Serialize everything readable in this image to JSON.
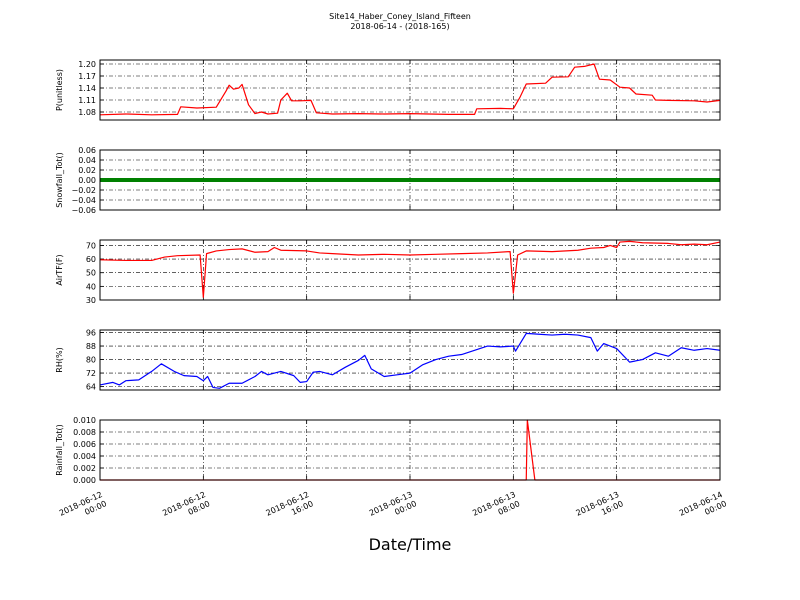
{
  "figure": {
    "title_line1": "Site14_Haber_Coney_Island_Fifteen",
    "title_line2": "2018-06-14 - (2018-165)",
    "xlabel": "Date/Time"
  },
  "chart_data": {
    "type": "line",
    "x_axis": {
      "start": "2018-06-12 00:00",
      "end": "2018-06-14 00:00",
      "ticks": [
        {
          "time": "2018-06-12 00:00",
          "line1": "2018-06-12",
          "line2": "00:00"
        },
        {
          "time": "2018-06-12 08:00",
          "line1": "2018-06-12",
          "line2": "08:00"
        },
        {
          "time": "2018-06-12 16:00",
          "line1": "2018-06-12",
          "line2": "16:00"
        },
        {
          "time": "2018-06-13 00:00",
          "line1": "2018-06-13",
          "line2": "00:00"
        },
        {
          "time": "2018-06-13 08:00",
          "line1": "2018-06-13",
          "line2": "08:00"
        },
        {
          "time": "2018-06-13 16:00",
          "line1": "2018-06-13",
          "line2": "16:00"
        },
        {
          "time": "2018-06-14 00:00",
          "line1": "2018-06-14",
          "line2": "00:00"
        }
      ]
    },
    "grid": true,
    "grid_style": "dash-dot",
    "panels": [
      {
        "ylabel": "P(unitless)",
        "color": "#ff0000",
        "ylim": [
          1.06,
          1.21
        ],
        "yticks": [
          "1.20",
          "1.17",
          "1.14",
          "1.11",
          "1.08"
        ],
        "ytick_values": [
          1.2,
          1.17,
          1.14,
          1.11,
          1.08
        ],
        "points": [
          [
            "2018-06-12 00:00",
            1.073
          ],
          [
            "2018-06-12 02:00",
            1.075
          ],
          [
            "2018-06-12 04:00",
            1.073
          ],
          [
            "2018-06-12 06:00",
            1.074
          ],
          [
            "2018-06-12 06:15",
            1.093
          ],
          [
            "2018-06-12 07:30",
            1.09
          ],
          [
            "2018-06-12 09:00",
            1.092
          ],
          [
            "2018-06-12 09:45",
            1.132
          ],
          [
            "2018-06-12 10:00",
            1.147
          ],
          [
            "2018-06-12 10:20",
            1.137
          ],
          [
            "2018-06-12 10:45",
            1.14
          ],
          [
            "2018-06-12 11:00",
            1.149
          ],
          [
            "2018-06-12 11:30",
            1.098
          ],
          [
            "2018-06-12 12:00",
            1.076
          ],
          [
            "2018-06-12 12:30",
            1.08
          ],
          [
            "2018-06-12 13:00",
            1.075
          ],
          [
            "2018-06-12 13:45",
            1.077
          ],
          [
            "2018-06-12 14:00",
            1.11
          ],
          [
            "2018-06-12 14:30",
            1.127
          ],
          [
            "2018-06-12 14:50",
            1.108
          ],
          [
            "2018-06-12 15:30",
            1.108
          ],
          [
            "2018-06-12 16:20",
            1.109
          ],
          [
            "2018-06-12 16:45",
            1.078
          ],
          [
            "2018-06-12 18:00",
            1.075
          ],
          [
            "2018-06-12 20:00",
            1.076
          ],
          [
            "2018-06-12 22:00",
            1.075
          ],
          [
            "2018-06-13 00:00",
            1.076
          ],
          [
            "2018-06-13 03:00",
            1.074
          ],
          [
            "2018-06-13 05:00",
            1.074
          ],
          [
            "2018-06-13 05:10",
            1.088
          ],
          [
            "2018-06-13 07:00",
            1.089
          ],
          [
            "2018-06-13 08:00",
            1.088
          ],
          [
            "2018-06-13 08:30",
            1.116
          ],
          [
            "2018-06-13 09:00",
            1.15
          ],
          [
            "2018-06-13 10:30",
            1.152
          ],
          [
            "2018-06-13 11:00",
            1.167
          ],
          [
            "2018-06-13 12:15",
            1.168
          ],
          [
            "2018-06-13 12:45",
            1.192
          ],
          [
            "2018-06-13 13:30",
            1.194
          ],
          [
            "2018-06-13 14:15",
            1.2
          ],
          [
            "2018-06-13 14:40",
            1.162
          ],
          [
            "2018-06-13 15:30",
            1.16
          ],
          [
            "2018-06-13 16:15",
            1.142
          ],
          [
            "2018-06-13 17:00",
            1.14
          ],
          [
            "2018-06-13 17:30",
            1.125
          ],
          [
            "2018-06-13 18:45",
            1.122
          ],
          [
            "2018-06-13 19:00",
            1.11
          ],
          [
            "2018-06-13 20:00",
            1.109
          ],
          [
            "2018-06-13 22:00",
            1.108
          ],
          [
            "2018-06-13 23:00",
            1.105
          ],
          [
            "2018-06-14 00:00",
            1.109
          ]
        ]
      },
      {
        "ylabel": "Snowfall_Tot()",
        "color": "#008000",
        "style": "thick",
        "ylim": [
          -0.06,
          0.06
        ],
        "yticks": [
          "0.06",
          "0.04",
          "0.02",
          "0.00",
          "−0.02",
          "−0.04",
          "−0.06"
        ],
        "ytick_values": [
          0.06,
          0.04,
          0.02,
          0.0,
          -0.02,
          -0.04,
          -0.06
        ],
        "points": [
          [
            "2018-06-12 00:00",
            0.0
          ],
          [
            "2018-06-14 00:00",
            0.0
          ]
        ]
      },
      {
        "ylabel": "AirTF(F)",
        "color": "#ff0000",
        "ylim": [
          30,
          74
        ],
        "yticks": [
          "70",
          "60",
          "50",
          "40",
          "30"
        ],
        "ytick_values": [
          70,
          60,
          50,
          40,
          30
        ],
        "points": [
          [
            "2018-06-12 00:00",
            59.5
          ],
          [
            "2018-06-12 02:00",
            59.0
          ],
          [
            "2018-06-12 04:00",
            59.0
          ],
          [
            "2018-06-12 05:00",
            61.5
          ],
          [
            "2018-06-12 06:00",
            62.5
          ],
          [
            "2018-06-12 07:45",
            63.0
          ],
          [
            "2018-06-12 08:00",
            32.0
          ],
          [
            "2018-06-12 08:15",
            64.0
          ],
          [
            "2018-06-12 09:00",
            66.0
          ],
          [
            "2018-06-12 10:00",
            67.0
          ],
          [
            "2018-06-12 11:00",
            67.5
          ],
          [
            "2018-06-12 12:00",
            65.0
          ],
          [
            "2018-06-12 13:00",
            65.5
          ],
          [
            "2018-06-12 13:30",
            68.5
          ],
          [
            "2018-06-12 14:00",
            66.5
          ],
          [
            "2018-06-12 16:00",
            66.0
          ],
          [
            "2018-06-12 17:00",
            64.5
          ],
          [
            "2018-06-12 18:00",
            64.0
          ],
          [
            "2018-06-12 20:00",
            63.0
          ],
          [
            "2018-06-12 22:00",
            63.5
          ],
          [
            "2018-06-13 00:00",
            63.0
          ],
          [
            "2018-06-13 02:00",
            63.5
          ],
          [
            "2018-06-13 04:00",
            64.0
          ],
          [
            "2018-06-13 06:00",
            64.5
          ],
          [
            "2018-06-13 07:45",
            65.5
          ],
          [
            "2018-06-13 08:00",
            35.0
          ],
          [
            "2018-06-13 08:20",
            63.0
          ],
          [
            "2018-06-13 09:00",
            66.0
          ],
          [
            "2018-06-13 11:00",
            65.5
          ],
          [
            "2018-06-13 13:00",
            66.5
          ],
          [
            "2018-06-13 14:00",
            68.0
          ],
          [
            "2018-06-13 15:00",
            68.5
          ],
          [
            "2018-06-13 15:30",
            70.0
          ],
          [
            "2018-06-13 16:00",
            68.5
          ],
          [
            "2018-06-13 16:15",
            72.5
          ],
          [
            "2018-06-13 17:00",
            73.0
          ],
          [
            "2018-06-13 18:00",
            72.0
          ],
          [
            "2018-06-13 20:00",
            71.5
          ],
          [
            "2018-06-13 21:00",
            70.5
          ],
          [
            "2018-06-13 22:00",
            71.0
          ],
          [
            "2018-06-13 23:00",
            70.5
          ],
          [
            "2018-06-14 00:00",
            72.5
          ]
        ]
      },
      {
        "ylabel": "RH(%)",
        "color": "#0000ff",
        "ylim": [
          62,
          97.5
        ],
        "yticks": [
          "96",
          "88",
          "80",
          "72",
          "64"
        ],
        "ytick_values": [
          96,
          88,
          80,
          72,
          64
        ],
        "points": [
          [
            "2018-06-12 00:00",
            65.0
          ],
          [
            "2018-06-12 01:00",
            66.5
          ],
          [
            "2018-06-12 01:30",
            65.0
          ],
          [
            "2018-06-12 02:00",
            67.5
          ],
          [
            "2018-06-12 03:00",
            68.0
          ],
          [
            "2018-06-12 04:00",
            73.0
          ],
          [
            "2018-06-12 04:45",
            77.5
          ],
          [
            "2018-06-12 05:45",
            73.0
          ],
          [
            "2018-06-12 06:30",
            70.5
          ],
          [
            "2018-06-12 07:30",
            70.0
          ],
          [
            "2018-06-12 08:00",
            67.5
          ],
          [
            "2018-06-12 08:20",
            70.0
          ],
          [
            "2018-06-12 08:45",
            63.5
          ],
          [
            "2018-06-12 09:15",
            63.0
          ],
          [
            "2018-06-12 10:00",
            66.0
          ],
          [
            "2018-06-12 11:00",
            66.0
          ],
          [
            "2018-06-12 12:00",
            70.0
          ],
          [
            "2018-06-12 12:30",
            73.0
          ],
          [
            "2018-06-12 13:00",
            71.0
          ],
          [
            "2018-06-12 14:00",
            73.0
          ],
          [
            "2018-06-12 15:00",
            70.5
          ],
          [
            "2018-06-12 15:30",
            66.5
          ],
          [
            "2018-06-12 16:00",
            67.0
          ],
          [
            "2018-06-12 16:30",
            72.5
          ],
          [
            "2018-06-12 17:00",
            73.0
          ],
          [
            "2018-06-12 18:00",
            71.0
          ],
          [
            "2018-06-12 19:00",
            75.5
          ],
          [
            "2018-06-12 20:00",
            79.5
          ],
          [
            "2018-06-12 20:30",
            82.5
          ],
          [
            "2018-06-12 21:00",
            74.5
          ],
          [
            "2018-06-12 22:00",
            70.0
          ],
          [
            "2018-06-12 23:00",
            71.0
          ],
          [
            "2018-06-13 00:00",
            72.0
          ],
          [
            "2018-06-13 01:00",
            77.0
          ],
          [
            "2018-06-13 02:00",
            80.0
          ],
          [
            "2018-06-13 03:00",
            82.0
          ],
          [
            "2018-06-13 04:00",
            83.0
          ],
          [
            "2018-06-13 05:00",
            85.5
          ],
          [
            "2018-06-13 06:00",
            88.0
          ],
          [
            "2018-06-13 07:00",
            87.5
          ],
          [
            "2018-06-13 08:00",
            88.0
          ],
          [
            "2018-06-13 08:10",
            85.0
          ],
          [
            "2018-06-13 09:00",
            95.5
          ],
          [
            "2018-06-13 10:00",
            95.0
          ],
          [
            "2018-06-13 11:00",
            94.5
          ],
          [
            "2018-06-13 12:00",
            95.0
          ],
          [
            "2018-06-13 13:00",
            94.5
          ],
          [
            "2018-06-13 14:00",
            93.0
          ],
          [
            "2018-06-13 14:30",
            85.0
          ],
          [
            "2018-06-13 15:00",
            89.5
          ],
          [
            "2018-06-13 16:00",
            86.5
          ],
          [
            "2018-06-13 17:00",
            78.5
          ],
          [
            "2018-06-13 18:00",
            80.0
          ],
          [
            "2018-06-13 19:00",
            84.0
          ],
          [
            "2018-06-13 20:00",
            82.0
          ],
          [
            "2018-06-13 21:00",
            87.0
          ],
          [
            "2018-06-13 22:00",
            85.5
          ],
          [
            "2018-06-13 23:00",
            86.5
          ],
          [
            "2018-06-14 00:00",
            85.5
          ]
        ]
      },
      {
        "ylabel": "Rainfall_Tot()",
        "color": "#ff0000",
        "ylim": [
          0,
          0.01
        ],
        "yticks": [
          "0.010",
          "0.008",
          "0.006",
          "0.004",
          "0.002",
          "0.000"
        ],
        "ytick_values": [
          0.01,
          0.008,
          0.006,
          0.004,
          0.002,
          0.0
        ],
        "points": [
          [
            "2018-06-12 00:00",
            0.0
          ],
          [
            "2018-06-13 09:00",
            0.0
          ],
          [
            "2018-06-13 09:05",
            0.01
          ],
          [
            "2018-06-13 09:40",
            0.0
          ],
          [
            "2018-06-14 00:00",
            0.0
          ]
        ]
      }
    ]
  }
}
